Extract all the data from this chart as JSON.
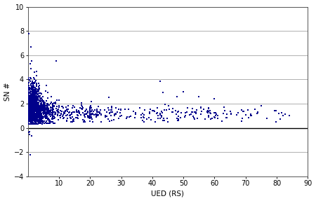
{
  "title": "",
  "xlabel": "UED (RS)",
  "ylabel": "SN #",
  "xlim": [
    0,
    90
  ],
  "ylim": [
    -4,
    10
  ],
  "xticks": [
    10,
    20,
    30,
    40,
    50,
    60,
    70,
    80,
    90
  ],
  "yticks": [
    -4,
    -2,
    0,
    2,
    4,
    6,
    8,
    10
  ],
  "point_color": "#00008B",
  "marker_size": 2.5,
  "background_color": "#ffffff",
  "grid_color": "#b0b0b0",
  "figsize": [
    4.5,
    2.87
  ],
  "dpi": 100,
  "seed": 42,
  "cluster1": {
    "n": 900,
    "x_mean": 1.5,
    "x_std": 1.2,
    "x_min": 0.05,
    "x_max": 6,
    "y_mean": 1.8,
    "y_std": 0.9,
    "y_min": 0.3,
    "y_max": 5.5
  },
  "cluster2": {
    "n": 400,
    "x_mean": 4.5,
    "x_std": 2.5,
    "x_min": 1,
    "x_max": 12,
    "y_mean": 1.3,
    "y_std": 0.55,
    "y_min": 0.4,
    "y_max": 3.5
  },
  "cluster3": {
    "n": 200,
    "x_mean": 16,
    "x_std": 7,
    "x_min": 8,
    "x_max": 35,
    "y_mean": 1.2,
    "y_std": 0.35,
    "y_min": 0.5,
    "y_max": 2.5
  },
  "cluster4": {
    "n": 180,
    "x_mean": 50,
    "x_std": 18,
    "x_min": 20,
    "x_max": 88,
    "y_mean": 1.1,
    "y_std": 0.3,
    "y_min": 0.5,
    "y_max": 2.0
  },
  "outliers_high": [
    [
      0.4,
      7.8
    ],
    [
      0.9,
      6.7
    ],
    [
      1.3,
      5.5
    ],
    [
      2.2,
      4.6
    ],
    [
      2.8,
      4.3
    ],
    [
      0.7,
      5.3
    ],
    [
      1.0,
      4.9
    ],
    [
      9.2,
      5.5
    ],
    [
      42.5,
      3.85
    ],
    [
      43.5,
      2.9
    ],
    [
      50.0,
      3.0
    ],
    [
      55.0,
      2.6
    ],
    [
      60.0,
      2.4
    ],
    [
      75.0,
      1.8
    ],
    [
      82.0,
      1.0
    ],
    [
      70.0,
      1.1
    ],
    [
      63.0,
      1.7
    ],
    [
      48.0,
      2.6
    ]
  ],
  "outliers_low": [
    [
      0.3,
      -0.4
    ],
    [
      0.5,
      -0.55
    ],
    [
      0.8,
      -2.2
    ],
    [
      1.1,
      -0.65
    ],
    [
      0.6,
      -0.3
    ]
  ]
}
